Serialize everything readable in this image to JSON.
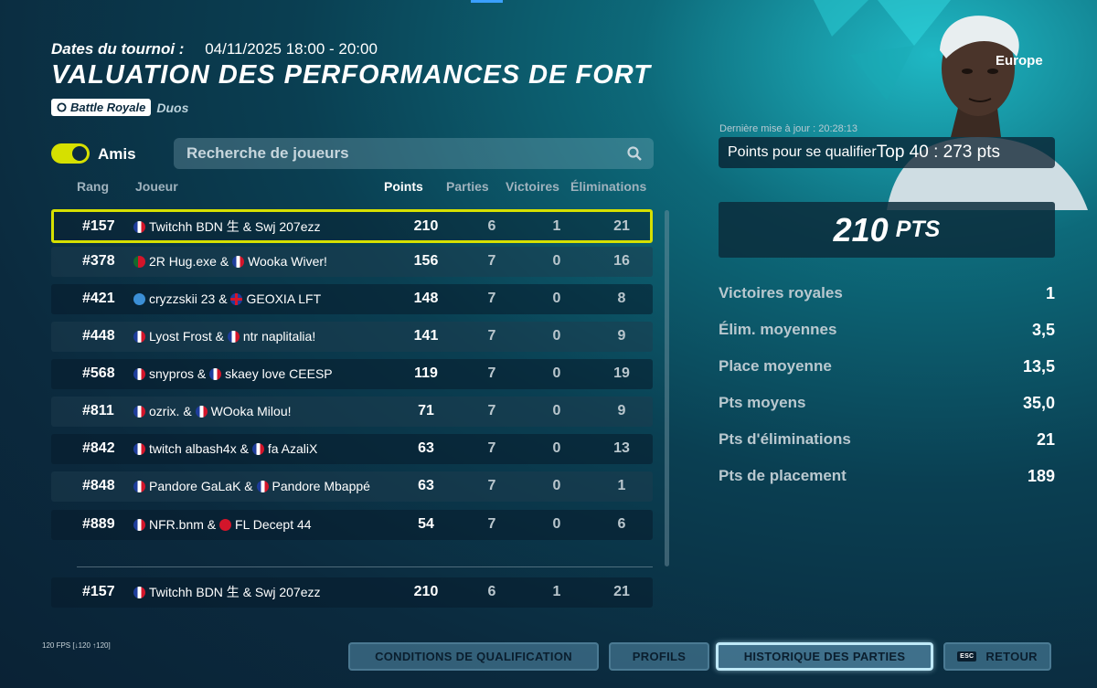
{
  "header": {
    "dates_label": "Dates du tournoi :",
    "dates_value": "04/11/2025 18:00 - 20:00",
    "title": "VALUATION DES PERFORMANCES DE FORT",
    "mode_badge": "Battle Royale",
    "mode_type": "Duos"
  },
  "filters": {
    "friends_label": "Amis",
    "friends_on": true,
    "search_placeholder": "Recherche de joueurs"
  },
  "table": {
    "columns": {
      "rank": "Rang",
      "player": "Joueur",
      "points": "Points",
      "games": "Parties",
      "wins": "Victoires",
      "elims": "Éliminations"
    },
    "rows": [
      {
        "rank": "#157",
        "p1": "Twitchh BDN 生 & Swj 207ezz",
        "p2": "",
        "f1": "fr",
        "f2": "",
        "points": "210",
        "games": "6",
        "wins": "1",
        "elims": "21"
      },
      {
        "rank": "#378",
        "p1": "2R Hug.exe & ",
        "p2": "Wooka Wiver!",
        "f1": "pt",
        "f2": "fr",
        "points": "156",
        "games": "7",
        "wins": "0",
        "elims": "16"
      },
      {
        "rank": "#421",
        "p1": "cryzzskii 23 & ",
        "p2": "GEOXIA LFT",
        "f1": "sc",
        "f2": "gb",
        "points": "148",
        "games": "7",
        "wins": "0",
        "elims": "8"
      },
      {
        "rank": "#448",
        "p1": "Lyost Frost & ",
        "p2": "ntr naplitalia!",
        "f1": "fr",
        "f2": "fr",
        "points": "141",
        "games": "7",
        "wins": "0",
        "elims": "9"
      },
      {
        "rank": "#568",
        "p1": "snypros & ",
        "p2": "skaey love CEESP",
        "f1": "fr",
        "f2": "fr",
        "points": "119",
        "games": "7",
        "wins": "0",
        "elims": "19"
      },
      {
        "rank": "#811",
        "p1": "ozrix. & ",
        "p2": "WOoka Milou!",
        "f1": "fr",
        "f2": "fr",
        "points": "71",
        "games": "7",
        "wins": "0",
        "elims": "9"
      },
      {
        "rank": "#842",
        "p1": "twitch albash4x & ",
        "p2": "fa AzaliX",
        "f1": "fr",
        "f2": "fr",
        "points": "63",
        "games": "7",
        "wins": "0",
        "elims": "13"
      },
      {
        "rank": "#848",
        "p1": "Pandore GaLaK & ",
        "p2": "Pandore Mbappé",
        "f1": "fr",
        "f2": "fr",
        "points": "63",
        "games": "7",
        "wins": "0",
        "elims": "1"
      },
      {
        "rank": "#889",
        "p1": "NFR.bnm & ",
        "p2": "FL Decept 44",
        "f1": "fr",
        "f2": "tr",
        "points": "54",
        "games": "7",
        "wins": "0",
        "elims": "6"
      }
    ],
    "self_row": {
      "rank": "#157",
      "p1": "Twitchh BDN 生 & Swj 207ezz",
      "points": "210",
      "games": "6",
      "wins": "1",
      "elims": "21"
    }
  },
  "panel": {
    "region": "Europe",
    "updated": "Dernière mise à jour : 20:28:13",
    "qualify_label": "Points pour se qualifier",
    "qualify_value": "Top 40 : 273 pts",
    "total_points": "210",
    "total_unit": "PTS",
    "stats": [
      {
        "label": "Victoires royales",
        "value": "1"
      },
      {
        "label": "Élim. moyennes",
        "value": "3,5"
      },
      {
        "label": "Place moyenne",
        "value": "13,5"
      },
      {
        "label": "Pts moyens",
        "value": "35,0"
      },
      {
        "label": "Pts d'éliminations",
        "value": "21"
      },
      {
        "label": "Pts de placement",
        "value": "189"
      }
    ]
  },
  "footer": {
    "fps": "120 FPS [↓120 ↑120]",
    "buttons": {
      "conditions": "CONDITIONS DE QUALIFICATION",
      "profiles": "PROFILS",
      "history": "HISTORIQUE DES PARTIES",
      "back_key": "ESC",
      "back": "RETOUR"
    }
  },
  "colors": {
    "accent": "#d6e000",
    "active_border": "#bfe9f7"
  }
}
